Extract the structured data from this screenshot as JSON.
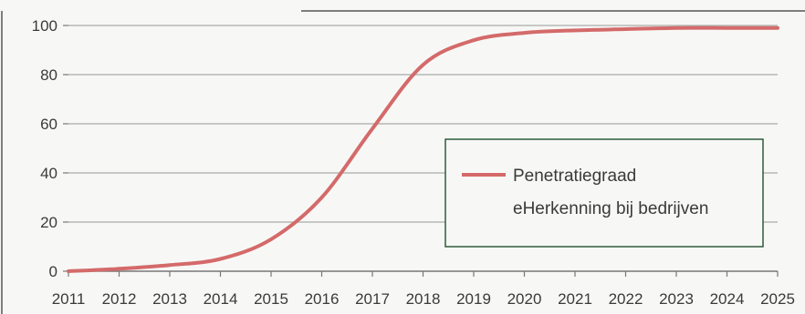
{
  "chart_data": {
    "type": "line",
    "title": "",
    "xlabel": "",
    "ylabel": "",
    "x": [
      2011,
      2012,
      2013,
      2014,
      2015,
      2016,
      2017,
      2018,
      2019,
      2020,
      2021,
      2022,
      2023,
      2024,
      2025
    ],
    "x_tick_labels": [
      "2011",
      "2012",
      "2013",
      "2014",
      "2015",
      "2016",
      "2017",
      "2018",
      "2019",
      "2020",
      "2021",
      "2022",
      "2023",
      "2024",
      "2025"
    ],
    "y_tick_labels": [
      "0",
      "20",
      "40",
      "60",
      "80",
      "100"
    ],
    "ylim": [
      0,
      100
    ],
    "grid": true,
    "legend_position": "right",
    "series": [
      {
        "name": "Penetratiegraad eHerkenning bij bedrijven",
        "legend_lines": [
          "Penetratiegraad",
          "eHerkenning bij bedrijven"
        ],
        "color": "#d46a6a",
        "values": [
          0,
          1,
          2.5,
          5,
          13,
          30,
          58,
          84,
          94,
          97,
          98,
          98.5,
          99,
          99,
          99
        ]
      }
    ]
  }
}
